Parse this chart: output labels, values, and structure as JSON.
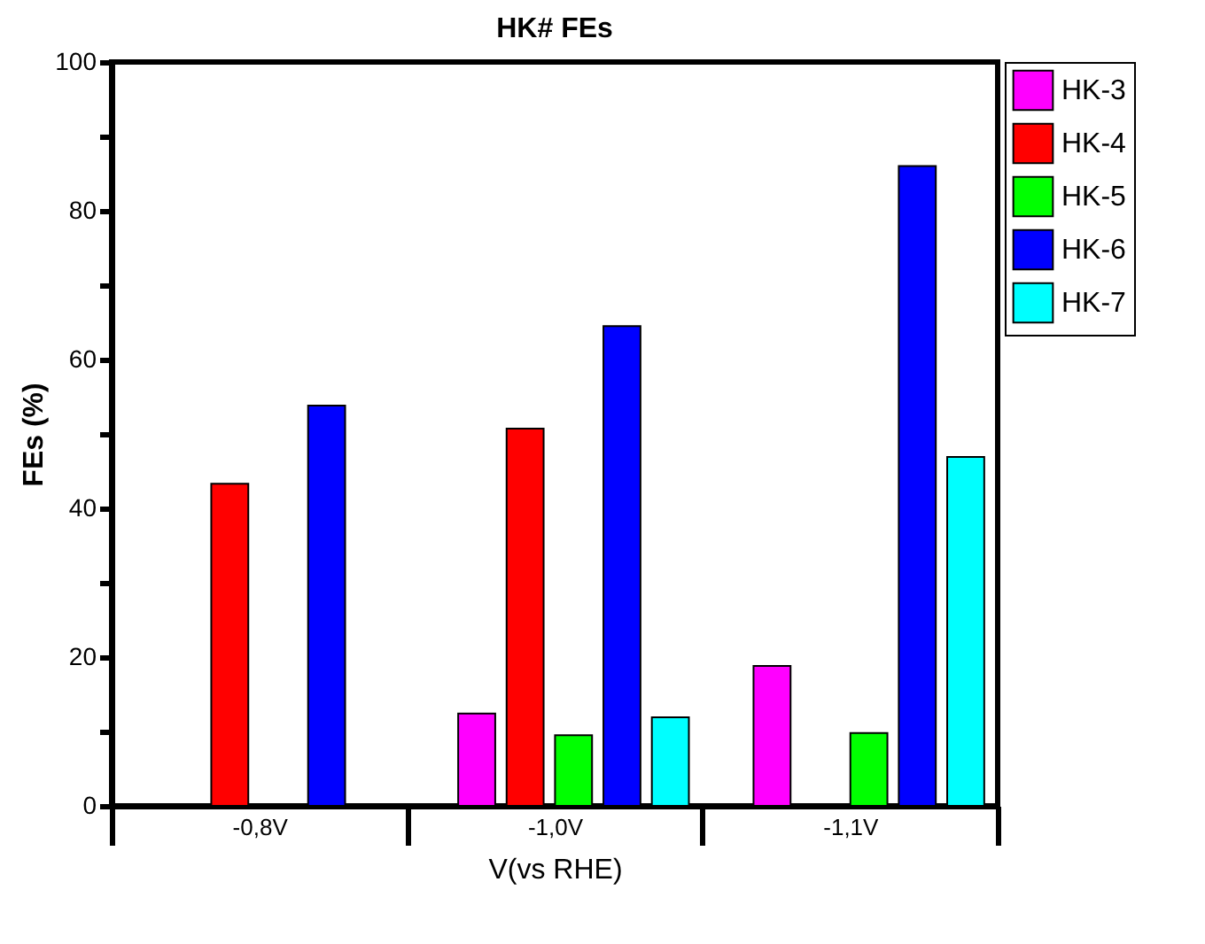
{
  "chart_data": {
    "type": "bar",
    "title": "HK# FEs",
    "xlabel": "V(vs RHE)",
    "ylabel": "FEs (%)",
    "categories": [
      "-0,8V",
      "-1,0V",
      "-1,1V"
    ],
    "series": [
      {
        "name": "HK-3",
        "color": "#ff00ff",
        "values": [
          null,
          12.4,
          18.8
        ]
      },
      {
        "name": "HK-4",
        "color": "#ff0000",
        "values": [
          43.3,
          50.7,
          null
        ]
      },
      {
        "name": "HK-5",
        "color": "#00ff00",
        "values": [
          null,
          9.5,
          9.8
        ]
      },
      {
        "name": "HK-6",
        "color": "#0000ff",
        "values": [
          53.8,
          64.5,
          86
        ]
      },
      {
        "name": "HK-7",
        "color": "#00ffff",
        "values": [
          null,
          11.9,
          46.9
        ]
      }
    ],
    "ylim": [
      0,
      100
    ],
    "yticks": [
      0,
      {
        "value": 10,
        "label": null
      },
      20,
      {
        "value": 30,
        "label": null
      },
      40,
      {
        "value": 50,
        "label": null
      },
      60,
      {
        "value": 70,
        "label": null
      },
      80,
      {
        "value": 90,
        "label": null
      },
      100
    ],
    "grid": false,
    "legend": "top right"
  }
}
